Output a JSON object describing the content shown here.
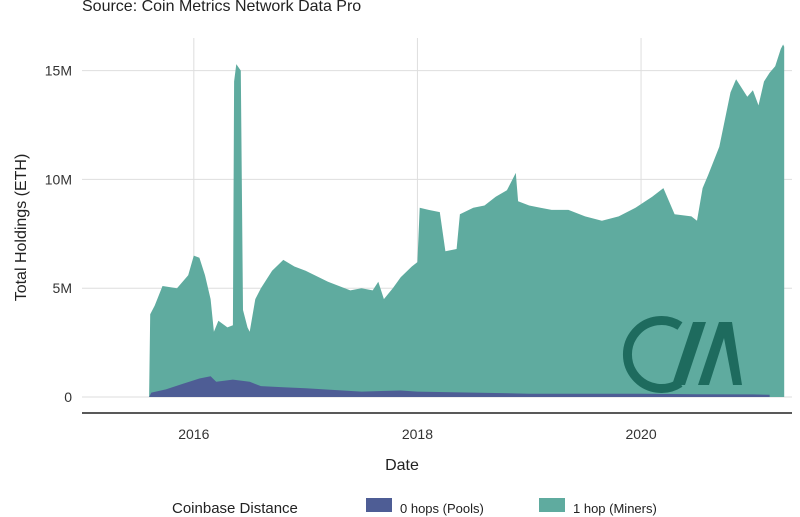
{
  "source_text": "Source: Coin Metrics Network Data Pro",
  "colors": {
    "pools": "#4e5d95",
    "miners": "#5fab9f",
    "logo": "#1e6b5e",
    "grid": "#dedede",
    "axis": "#222222"
  },
  "logo_icon": "cm-logo-icon",
  "chart_data": {
    "type": "area",
    "stacked": true,
    "xlabel": "Date",
    "ylabel": "Total Holdings (ETH)",
    "x_range": [
      2015.0,
      2021.35
    ],
    "ylim": [
      0,
      16500000
    ],
    "x_ticks": [
      {
        "value": 2016,
        "label": "2016"
      },
      {
        "value": 2018,
        "label": "2018"
      },
      {
        "value": 2020,
        "label": "2020"
      }
    ],
    "y_ticks": [
      {
        "value": 0,
        "label": "0"
      },
      {
        "value": 5000000,
        "label": "5M"
      },
      {
        "value": 10000000,
        "label": "10M"
      },
      {
        "value": 15000000,
        "label": "15M"
      }
    ],
    "grid": true,
    "legend_position": "bottom",
    "legend_title": "Coinbase Distance",
    "series": [
      {
        "name": "0 hops (Pools)",
        "points": [
          [
            2015.6,
            0
          ],
          [
            2015.62,
            200000
          ],
          [
            2015.75,
            350000
          ],
          [
            2015.9,
            600000
          ],
          [
            2016.05,
            850000
          ],
          [
            2016.15,
            950000
          ],
          [
            2016.2,
            700000
          ],
          [
            2016.35,
            800000
          ],
          [
            2016.5,
            700000
          ],
          [
            2016.6,
            500000
          ],
          [
            2016.8,
            450000
          ],
          [
            2017.0,
            400000
          ],
          [
            2017.5,
            250000
          ],
          [
            2017.85,
            300000
          ],
          [
            2018.0,
            250000
          ],
          [
            2018.5,
            200000
          ],
          [
            2019.0,
            150000
          ],
          [
            2019.5,
            150000
          ],
          [
            2020.0,
            150000
          ],
          [
            2020.5,
            130000
          ],
          [
            2021.0,
            120000
          ],
          [
            2021.15,
            100000
          ]
        ]
      },
      {
        "name": "1 hop (Miners)",
        "points": [
          [
            2015.6,
            0
          ],
          [
            2015.61,
            3800000
          ],
          [
            2015.65,
            4200000
          ],
          [
            2015.72,
            5100000
          ],
          [
            2015.85,
            5000000
          ],
          [
            2015.95,
            5600000
          ],
          [
            2016.0,
            6500000
          ],
          [
            2016.05,
            6400000
          ],
          [
            2016.1,
            5600000
          ],
          [
            2016.15,
            4500000
          ],
          [
            2016.18,
            3000000
          ],
          [
            2016.22,
            3500000
          ],
          [
            2016.3,
            3200000
          ],
          [
            2016.35,
            3300000
          ],
          [
            2016.36,
            14500000
          ],
          [
            2016.38,
            15300000
          ],
          [
            2016.42,
            15000000
          ],
          [
            2016.44,
            4000000
          ],
          [
            2016.48,
            3200000
          ],
          [
            2016.5,
            3000000
          ],
          [
            2016.55,
            4500000
          ],
          [
            2016.6,
            5000000
          ],
          [
            2016.7,
            5800000
          ],
          [
            2016.8,
            6300000
          ],
          [
            2016.9,
            6000000
          ],
          [
            2017.0,
            5800000
          ],
          [
            2017.2,
            5300000
          ],
          [
            2017.4,
            4900000
          ],
          [
            2017.5,
            5000000
          ],
          [
            2017.6,
            4900000
          ],
          [
            2017.65,
            5300000
          ],
          [
            2017.7,
            4500000
          ],
          [
            2017.78,
            5000000
          ],
          [
            2017.85,
            5500000
          ],
          [
            2017.95,
            6000000
          ],
          [
            2018.0,
            6200000
          ],
          [
            2018.02,
            8700000
          ],
          [
            2018.1,
            8600000
          ],
          [
            2018.2,
            8500000
          ],
          [
            2018.25,
            6700000
          ],
          [
            2018.35,
            6800000
          ],
          [
            2018.38,
            8400000
          ],
          [
            2018.5,
            8700000
          ],
          [
            2018.6,
            8800000
          ],
          [
            2018.7,
            9200000
          ],
          [
            2018.8,
            9500000
          ],
          [
            2018.85,
            10000000
          ],
          [
            2018.88,
            10300000
          ],
          [
            2018.9,
            9000000
          ],
          [
            2019.0,
            8800000
          ],
          [
            2019.1,
            8700000
          ],
          [
            2019.2,
            8600000
          ],
          [
            2019.35,
            8600000
          ],
          [
            2019.5,
            8300000
          ],
          [
            2019.65,
            8100000
          ],
          [
            2019.8,
            8300000
          ],
          [
            2019.95,
            8700000
          ],
          [
            2020.1,
            9200000
          ],
          [
            2020.2,
            9600000
          ],
          [
            2020.3,
            8400000
          ],
          [
            2020.45,
            8300000
          ],
          [
            2020.5,
            8100000
          ],
          [
            2020.55,
            9600000
          ],
          [
            2020.6,
            10200000
          ],
          [
            2020.7,
            11500000
          ],
          [
            2020.8,
            14000000
          ],
          [
            2020.85,
            14600000
          ],
          [
            2020.95,
            13800000
          ],
          [
            2021.0,
            14100000
          ],
          [
            2021.05,
            13400000
          ],
          [
            2021.1,
            14500000
          ],
          [
            2021.15,
            14900000
          ],
          [
            2021.2,
            15200000
          ],
          [
            2021.25,
            16000000
          ],
          [
            2021.27,
            16200000
          ],
          [
            2021.28,
            16100000
          ],
          [
            2021.28,
            0
          ]
        ]
      }
    ]
  }
}
